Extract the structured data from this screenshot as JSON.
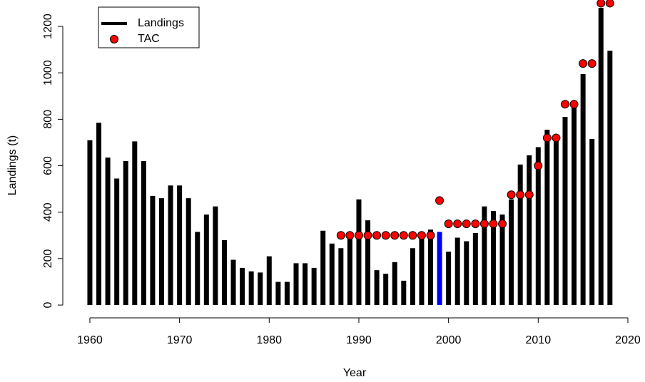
{
  "chart_data": {
    "type": "bar",
    "x_label": "Year",
    "y_label": "Landings (t)",
    "x": [
      1960,
      1961,
      1962,
      1963,
      1964,
      1965,
      1966,
      1967,
      1968,
      1969,
      1970,
      1971,
      1972,
      1973,
      1974,
      1975,
      1976,
      1977,
      1978,
      1979,
      1980,
      1981,
      1982,
      1983,
      1984,
      1985,
      1986,
      1987,
      1988,
      1989,
      1990,
      1991,
      1992,
      1993,
      1994,
      1995,
      1996,
      1997,
      1998,
      1999,
      2000,
      2001,
      2002,
      2003,
      2004,
      2005,
      2006,
      2007,
      2008,
      2009,
      2010,
      2011,
      2012,
      2013,
      2014,
      2015,
      2016,
      2017,
      2018
    ],
    "series": [
      {
        "name": "Landings",
        "type": "bar",
        "color": "#000000",
        "values": [
          710,
          785,
          635,
          545,
          620,
          705,
          620,
          470,
          460,
          515,
          515,
          460,
          315,
          390,
          425,
          280,
          195,
          160,
          145,
          140,
          210,
          100,
          100,
          180,
          180,
          160,
          320,
          265,
          245,
          300,
          455,
          365,
          150,
          135,
          185,
          105,
          245,
          300,
          325,
          315,
          230,
          290,
          275,
          310,
          425,
          405,
          390,
          455,
          605,
          645,
          680,
          755,
          715,
          810,
          860,
          995,
          715,
          1280,
          1095
        ],
        "highlight_x": 1999,
        "highlight_color": "#0000ff"
      },
      {
        "name": "TAC",
        "type": "scatter",
        "color": "#ff0000",
        "values": [
          null,
          null,
          null,
          null,
          null,
          null,
          null,
          null,
          null,
          null,
          null,
          null,
          null,
          null,
          null,
          null,
          null,
          null,
          null,
          null,
          null,
          null,
          null,
          null,
          null,
          null,
          null,
          null,
          300,
          300,
          300,
          300,
          300,
          300,
          300,
          300,
          300,
          300,
          300,
          450,
          350,
          350,
          350,
          350,
          350,
          350,
          350,
          475,
          475,
          475,
          600,
          720,
          720,
          865,
          865,
          1040,
          1040,
          1300,
          1300
        ]
      }
    ],
    "xlim": [
      1957.68,
      2020.32
    ],
    "ylim": [
      -52,
      1352
    ],
    "xticks": [
      1960,
      1970,
      1980,
      1990,
      2000,
      2010,
      2020
    ],
    "yticks": [
      0,
      200,
      400,
      600,
      800,
      1000,
      1200
    ],
    "legend": "top-left"
  }
}
